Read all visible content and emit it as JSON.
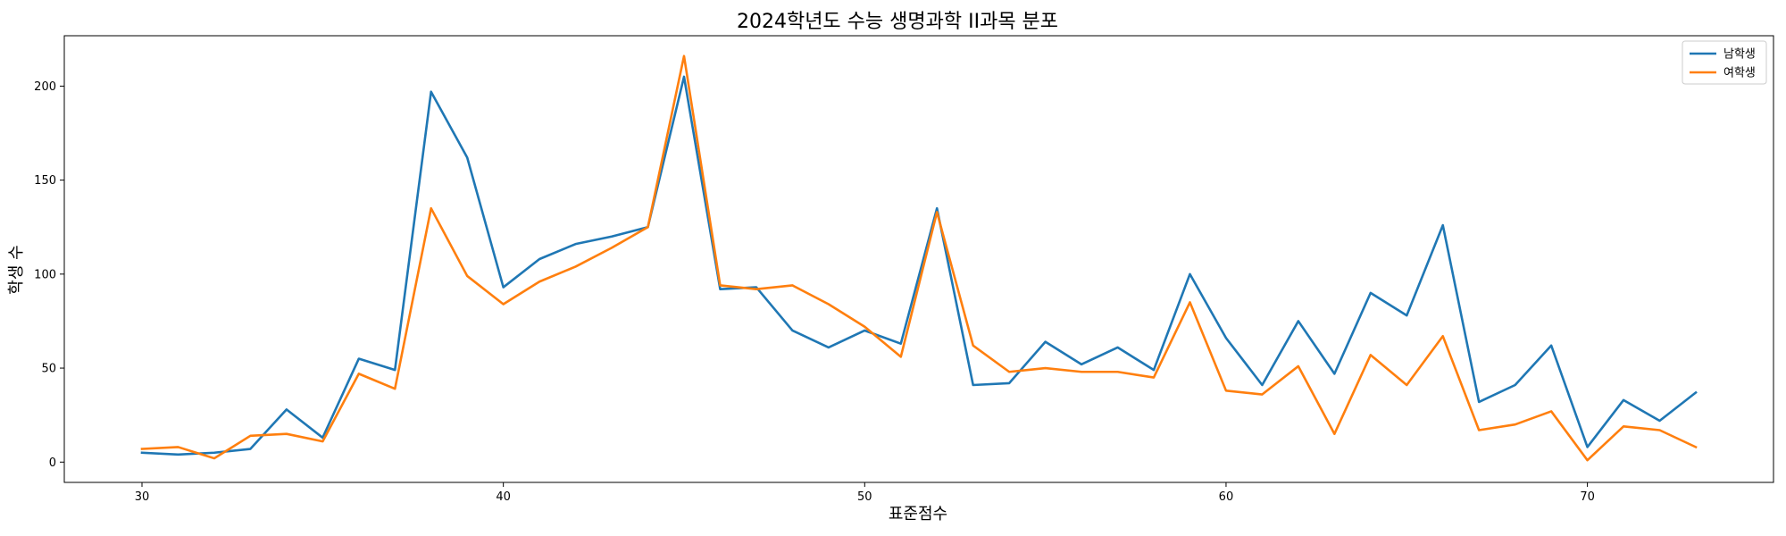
{
  "chart_data": {
    "type": "line",
    "title": "2024학년도 수능 생명과학 II과목 분포",
    "xlabel": "표준점수",
    "ylabel": "학생 수",
    "xlim": [
      27.85,
      75.15
    ],
    "ylim": [
      -10.8,
      226.8
    ],
    "x_ticks": [
      30,
      40,
      50,
      60,
      70
    ],
    "y_ticks": [
      0,
      50,
      100,
      150,
      200
    ],
    "grid": false,
    "legend_position": "top-right",
    "x": [
      30,
      31,
      32,
      33,
      34,
      35,
      36,
      37,
      38,
      39,
      40,
      41,
      42,
      43,
      44,
      45,
      46,
      47,
      48,
      49,
      50,
      51,
      52,
      53,
      54,
      55,
      56,
      57,
      58,
      59,
      60,
      61,
      62,
      63,
      64,
      65,
      66,
      67,
      68,
      69,
      70,
      71,
      72,
      73
    ],
    "series": [
      {
        "name": "남학생",
        "color": "#1f77b4",
        "values": [
          5,
          4,
          5,
          7,
          28,
          13,
          55,
          49,
          197,
          162,
          93,
          108,
          116,
          120,
          125,
          205,
          92,
          93,
          70,
          61,
          70,
          63,
          135,
          41,
          42,
          64,
          52,
          61,
          49,
          100,
          66,
          41,
          75,
          47,
          90,
          78,
          126,
          32,
          41,
          62,
          8,
          33,
          22,
          37
        ]
      },
      {
        "name": "여학생",
        "color": "#ff7f0e",
        "values": [
          7,
          8,
          2,
          14,
          15,
          11,
          47,
          39,
          135,
          99,
          84,
          96,
          104,
          114,
          125,
          216,
          94,
          92,
          94,
          84,
          72,
          56,
          133,
          62,
          48,
          50,
          48,
          48,
          45,
          85,
          38,
          36,
          51,
          15,
          57,
          41,
          67,
          17,
          20,
          27,
          1,
          19,
          17,
          8
        ]
      }
    ]
  }
}
